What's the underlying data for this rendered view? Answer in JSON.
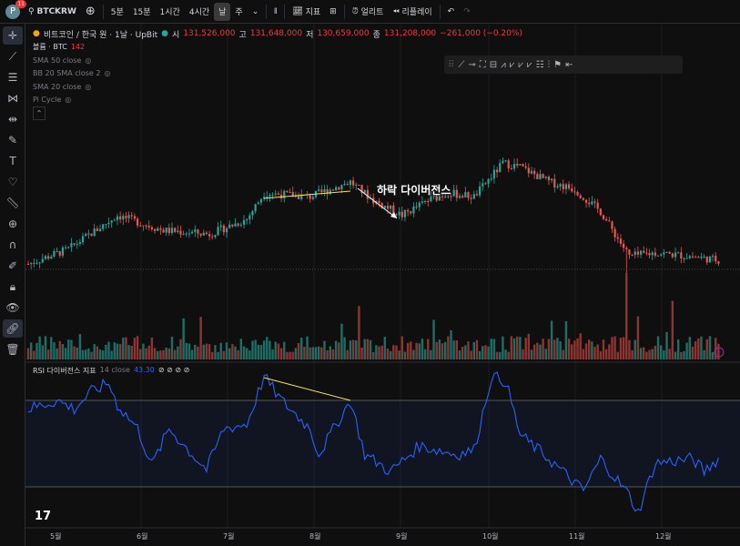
{
  "topbar": {
    "avatar": "P",
    "badge": "11",
    "symbol": "BTCKRW",
    "intervals": [
      "5분",
      "15분",
      "1시간",
      "4시간",
      "날",
      "주"
    ],
    "selected_interval": "날",
    "indicators": "지표",
    "alert": "얼리트",
    "replay": "리플레이"
  },
  "legend": {
    "title": "비트코인 / 한국 원 · 1날 · UpBit",
    "o_label": "시",
    "o": "131,526,000",
    "h_label": "고",
    "h": "131,648,000",
    "l_label": "저",
    "l": "130,659,000",
    "c_label": "종",
    "c": "131,208,000",
    "change": "−261,000 (−0.20%)",
    "volume_label": "볼륨 · BTC",
    "volume": "142",
    "studies": [
      "SMA 50 close",
      "BB 20 SMA close 2",
      "SMA 20 close",
      "Pi Cycle"
    ]
  },
  "annotation": "하락 다이버전스",
  "rsi": {
    "title": "RSI 다이버전스 지표",
    "params": "14 close",
    "value": "43.30"
  },
  "months": [
    "5월",
    "6월",
    "7월",
    "8월",
    "9월",
    "10월",
    "11월",
    "12월"
  ],
  "colors": {
    "up": "#26a69a",
    "down": "#ef5350",
    "rsi": "#2962ff",
    "divergence": "#f5e55b"
  },
  "chart_data": {
    "type": "candlestick",
    "price_keypoints_M": [
      [
        0,
        131
      ],
      [
        14,
        135
      ],
      [
        31,
        144
      ],
      [
        47,
        140
      ],
      [
        63,
        139
      ],
      [
        76,
        143
      ],
      [
        82,
        150
      ],
      [
        98,
        149
      ],
      [
        112,
        153
      ],
      [
        120,
        148
      ],
      [
        130,
        144
      ],
      [
        139,
        148
      ],
      [
        146,
        150
      ],
      [
        155,
        149
      ],
      [
        165,
        158
      ],
      [
        171,
        157
      ],
      [
        181,
        153
      ],
      [
        190,
        151
      ],
      [
        199,
        145
      ],
      [
        209,
        133
      ],
      [
        218,
        134
      ],
      [
        231,
        133
      ],
      [
        240,
        132
      ]
    ],
    "rsi_keypoints": [
      [
        0,
        66
      ],
      [
        10,
        70
      ],
      [
        16,
        66
      ],
      [
        22,
        74
      ],
      [
        28,
        78
      ],
      [
        31,
        68
      ],
      [
        38,
        57
      ],
      [
        43,
        40
      ],
      [
        49,
        57
      ],
      [
        57,
        45
      ],
      [
        62,
        38
      ],
      [
        68,
        57
      ],
      [
        76,
        59
      ],
      [
        82,
        81
      ],
      [
        88,
        70
      ],
      [
        98,
        57
      ],
      [
        101,
        45
      ],
      [
        112,
        70
      ],
      [
        117,
        45
      ],
      [
        126,
        37
      ],
      [
        136,
        49
      ],
      [
        149,
        45
      ],
      [
        155,
        47
      ],
      [
        161,
        81
      ],
      [
        166,
        79
      ],
      [
        171,
        54
      ],
      [
        181,
        43
      ],
      [
        193,
        28
      ],
      [
        199,
        43
      ],
      [
        209,
        26
      ],
      [
        212,
        18
      ],
      [
        218,
        41
      ],
      [
        231,
        43
      ],
      [
        235,
        37
      ],
      [
        240,
        43.3
      ]
    ],
    "rsi_bands": [
      70,
      30
    ]
  }
}
